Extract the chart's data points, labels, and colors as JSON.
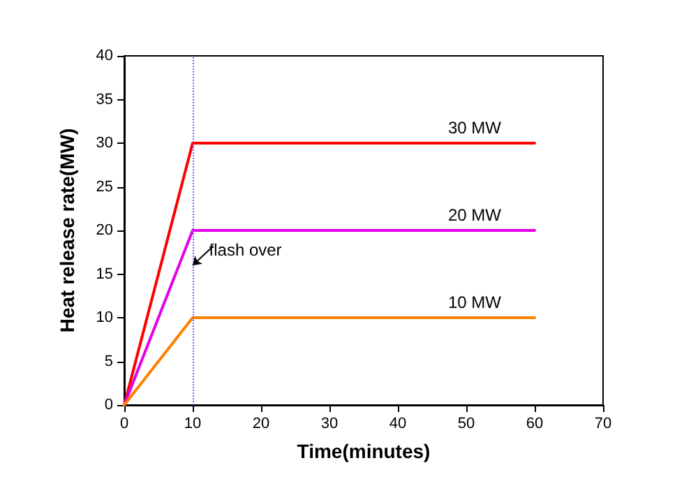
{
  "chart_data": {
    "type": "line",
    "xlabel": "Time(minutes)",
    "ylabel": "Heat release rate(MW)",
    "x": [
      0,
      10,
      60
    ],
    "series": [
      {
        "name": "30 MW",
        "color": "#ff0000",
        "values": [
          0,
          30,
          30
        ]
      },
      {
        "name": "20 MW",
        "color": "#e600e6",
        "values": [
          0,
          20,
          20
        ]
      },
      {
        "name": "10 MW",
        "color": "#ff8000",
        "values": [
          0,
          10,
          10
        ]
      }
    ],
    "xlim": [
      0,
      70
    ],
    "xticks": [
      0,
      10,
      20,
      30,
      40,
      50,
      60,
      70
    ],
    "ylim": [
      0,
      40
    ],
    "yticks": [
      0,
      5,
      10,
      15,
      20,
      25,
      30,
      35,
      40
    ],
    "ref_lines": [
      {
        "axis": "x",
        "value": 10,
        "label": null,
        "color": "#6666ff",
        "line_style": "dotted"
      }
    ],
    "annotations": [
      {
        "text": "flash over",
        "x": 10,
        "y": 16
      }
    ],
    "grid": false,
    "legend": false,
    "marker": "none",
    "line_style": "solid"
  }
}
